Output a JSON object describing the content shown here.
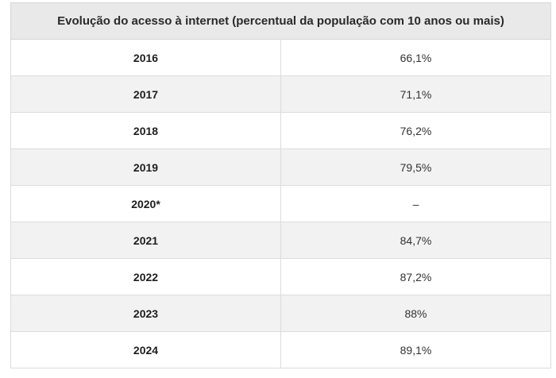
{
  "chart_data": {
    "type": "table",
    "title": "Evolução do acesso à internet (percentual da população com 10 anos ou mais)",
    "rows": [
      {
        "year": "2016",
        "value_label": "66,1%",
        "value": 66.1
      },
      {
        "year": "2017",
        "value_label": "71,1%",
        "value": 71.1
      },
      {
        "year": "2018",
        "value_label": "76,2%",
        "value": 76.2
      },
      {
        "year": "2019",
        "value_label": "79,5%",
        "value": 79.5
      },
      {
        "year": "2020*",
        "value_label": "–",
        "value": null
      },
      {
        "year": "2021",
        "value_label": "84,7%",
        "value": 84.7
      },
      {
        "year": "2022",
        "value_label": "87,2%",
        "value": 87.2
      },
      {
        "year": "2023",
        "value_label": "88%",
        "value": 88.0
      },
      {
        "year": "2024",
        "value_label": "89,1%",
        "value": 89.1
      }
    ]
  }
}
